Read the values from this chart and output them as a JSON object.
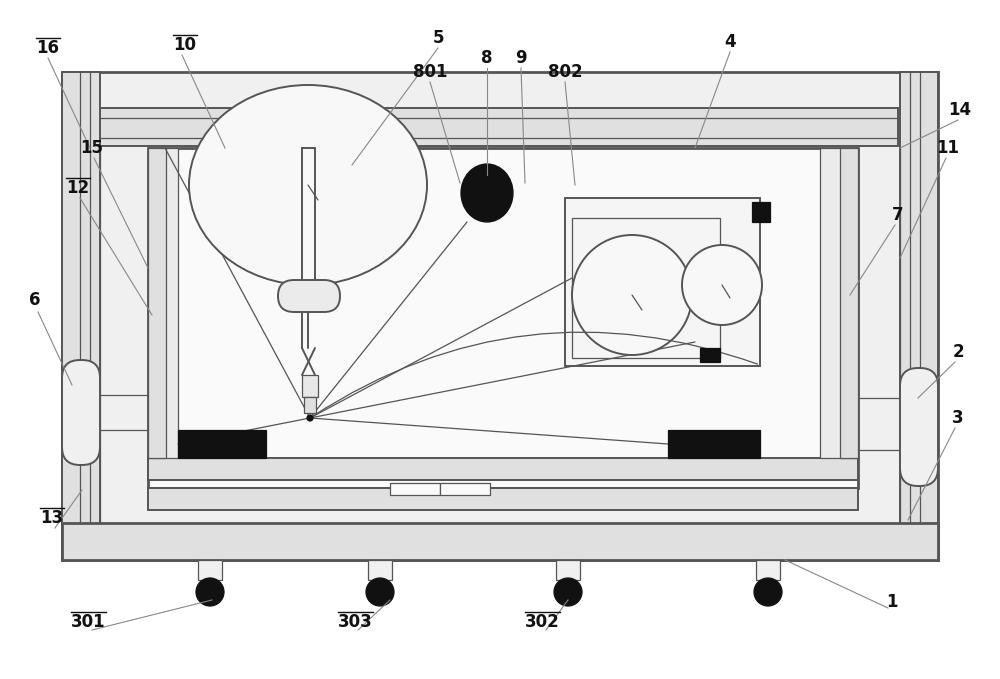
{
  "bg": "#ffffff",
  "lc": "#555555",
  "lc_dark": "#333333",
  "lw_thin": 0.9,
  "lw_med": 1.4,
  "lw_thick": 2.0,
  "black": "#111111",
  "gray_light": "#f0f0f0",
  "gray_mid": "#e0e0e0",
  "gray_dark": "#cccccc",
  "labels": {
    "16": [
      48,
      48,
      true
    ],
    "10": [
      185,
      45,
      true
    ],
    "5": [
      438,
      38,
      false
    ],
    "8": [
      487,
      58,
      false
    ],
    "9": [
      521,
      58,
      false
    ],
    "801": [
      430,
      72,
      false
    ],
    "802": [
      565,
      72,
      false
    ],
    "4": [
      730,
      42,
      false
    ],
    "14": [
      960,
      110,
      false
    ],
    "11": [
      948,
      148,
      false
    ],
    "7": [
      898,
      215,
      false
    ],
    "15": [
      92,
      148,
      false
    ],
    "12": [
      78,
      188,
      true
    ],
    "6": [
      35,
      300,
      false
    ],
    "2": [
      958,
      352,
      false
    ],
    "3": [
      958,
      418,
      false
    ],
    "13": [
      52,
      518,
      true
    ],
    "1": [
      892,
      602,
      false
    ],
    "301": [
      88,
      622,
      true
    ],
    "302": [
      542,
      622,
      true
    ],
    "303": [
      355,
      622,
      true
    ]
  },
  "leader_lines": [
    [
      48,
      58,
      90,
      148
    ],
    [
      182,
      55,
      225,
      148
    ],
    [
      438,
      48,
      352,
      165
    ],
    [
      487,
      68,
      487,
      175
    ],
    [
      521,
      68,
      525,
      183
    ],
    [
      430,
      82,
      460,
      183
    ],
    [
      565,
      82,
      575,
      185
    ],
    [
      730,
      52,
      695,
      148
    ],
    [
      958,
      120,
      900,
      148
    ],
    [
      946,
      158,
      900,
      258
    ],
    [
      895,
      225,
      850,
      295
    ],
    [
      94,
      158,
      148,
      268
    ],
    [
      80,
      198,
      152,
      315
    ],
    [
      38,
      312,
      72,
      385
    ],
    [
      955,
      362,
      918,
      398
    ],
    [
      955,
      428,
      908,
      520
    ],
    [
      55,
      528,
      82,
      490
    ],
    [
      888,
      608,
      785,
      560
    ],
    [
      92,
      630,
      212,
      600
    ],
    [
      546,
      630,
      568,
      600
    ],
    [
      358,
      630,
      390,
      600
    ]
  ]
}
